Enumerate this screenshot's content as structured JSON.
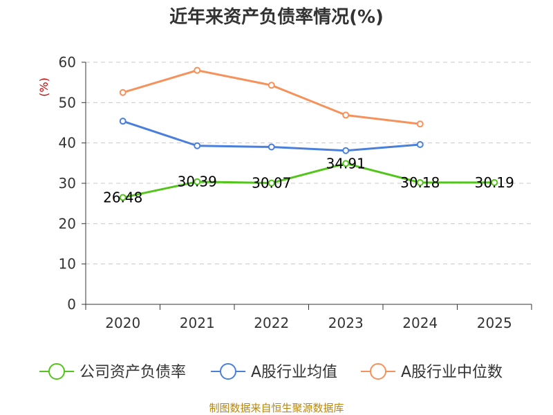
{
  "chart_data": {
    "type": "line",
    "title": "近年来资产负债率情况(%)",
    "ylabel": "(%)",
    "xlabel": "",
    "categories": [
      "2020",
      "2021",
      "2022",
      "2023",
      "2024",
      "2025"
    ],
    "ylim": [
      0,
      60
    ],
    "yticks": [
      0,
      10,
      20,
      30,
      40,
      50,
      60
    ],
    "grid": true,
    "legend_position": "bottom",
    "series": [
      {
        "name": "公司资产负债率",
        "color": "#52c41a",
        "values": [
          26.48,
          30.39,
          30.07,
          34.91,
          30.18,
          30.19
        ],
        "labels": [
          "26.48",
          "30.39",
          "30.07",
          "34.91",
          "30.18",
          "30.19"
        ]
      },
      {
        "name": "A股行业均值",
        "color": "#4a7fdb",
        "values": [
          45.4,
          39.3,
          39.0,
          38.1,
          39.6,
          null
        ]
      },
      {
        "name": "A股行业中位数",
        "color": "#f5915a",
        "values": [
          52.5,
          58.0,
          54.3,
          46.9,
          44.7,
          null
        ]
      }
    ]
  },
  "source": "制图数据来自恒生聚源数据库"
}
